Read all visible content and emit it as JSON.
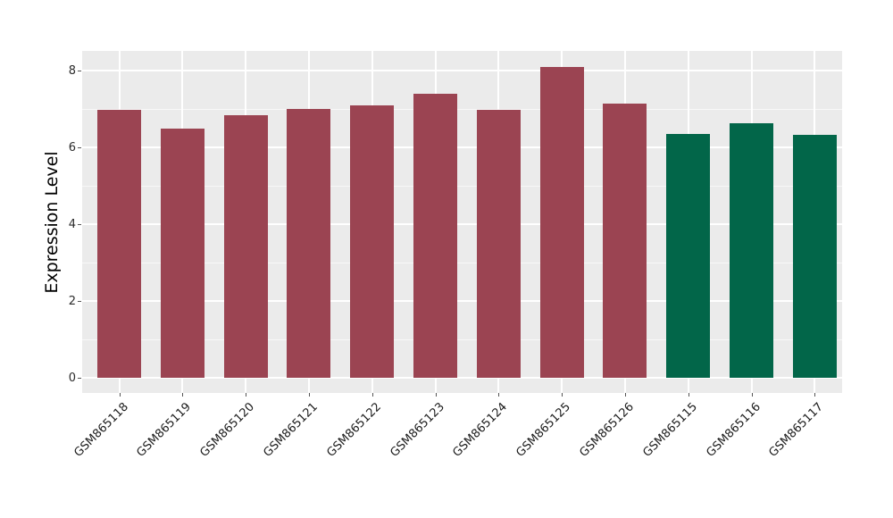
{
  "figure": {
    "background": "#ffffff",
    "panel_background": "#EBEBEB",
    "grid_color": "#ffffff",
    "tick_color": "#555555"
  },
  "chart_data": {
    "type": "bar",
    "title": "",
    "xlabel": "",
    "ylabel": "Expression Level",
    "categories": [
      "GSM865118",
      "GSM865119",
      "GSM865120",
      "GSM865121",
      "GSM865122",
      "GSM865123",
      "GSM865124",
      "GSM865125",
      "GSM865126",
      "GSM865115",
      "GSM865116",
      "GSM865117"
    ],
    "values": [
      6.97,
      6.49,
      6.84,
      7.0,
      7.09,
      7.39,
      6.97,
      8.09,
      7.14,
      6.36,
      6.63,
      6.33
    ],
    "bar_colors": [
      "#9B4452",
      "#9B4452",
      "#9B4452",
      "#9B4452",
      "#9B4452",
      "#9B4452",
      "#9B4452",
      "#9B4452",
      "#9B4452",
      "#026649",
      "#026649",
      "#026649"
    ],
    "group_colors": {
      "group1": "#9B4452",
      "group2": "#026649"
    },
    "yticks": [
      0,
      2,
      4,
      6,
      8
    ],
    "yticks_minor": [
      1,
      3,
      5,
      7
    ],
    "ylim": [
      -0.4,
      8.5
    ],
    "grid": "on",
    "legend": "none",
    "bar_orientation": "vertical",
    "x_tick_rotation_deg": 45
  }
}
